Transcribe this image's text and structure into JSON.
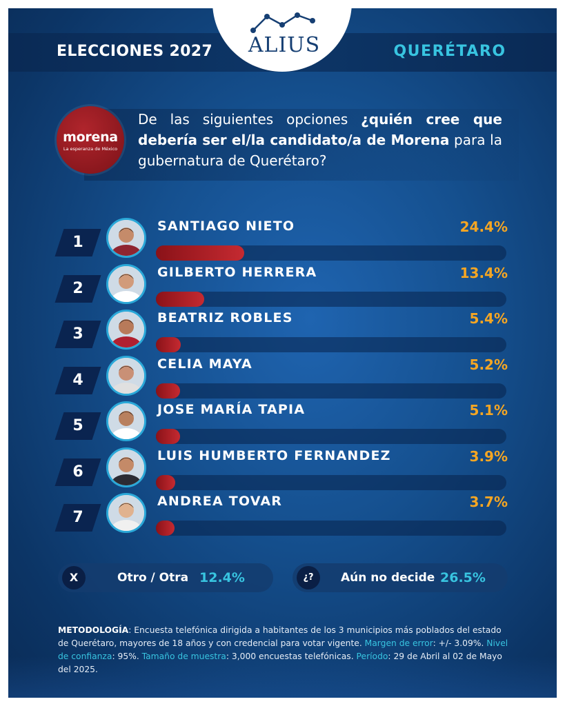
{
  "header": {
    "left": "ELECCIONES 2027",
    "right": "QUERÉTARO",
    "brand": "ALIUS"
  },
  "party": {
    "name": "morena",
    "tagline": "La esperanza de México"
  },
  "question": {
    "part1": "De las siguientes opciones ",
    "bold1": "¿quién cree que debería ser el/la candidato/a de ",
    "bold2": "Morena",
    "part2": " para la gubernatura de Querétaro?"
  },
  "chart_data": {
    "type": "bar",
    "categories": [
      "SANTIAGO NIETO",
      "GILBERTO HERRERA",
      "BEATRIZ ROBLES",
      "CELIA MAYA",
      "JOSE MARÍA TAPIA",
      "LUIS HUMBERTO FERNANDEZ",
      "ANDREA TOVAR"
    ],
    "values": [
      24.4,
      13.4,
      5.4,
      5.2,
      5.1,
      3.9,
      3.7
    ],
    "ranks": [
      "1",
      "2",
      "3",
      "4",
      "5",
      "6",
      "7"
    ],
    "labels": [
      "24.4%",
      "13.4%",
      "5.4%",
      "5.2%",
      "5.1%",
      "3.9%",
      "3.7%"
    ],
    "xlim": [
      0,
      100
    ],
    "title": "",
    "xlabel": "",
    "ylabel": "",
    "legend": "none",
    "grid": false,
    "bar_color": "#b3222a",
    "label_color": "#f5a623"
  },
  "summary": {
    "other": {
      "icon": "X",
      "label": "Otro / Otra",
      "value": "12.4%"
    },
    "undecided": {
      "icon": "¿?",
      "label": "Aún no decide",
      "value": "26.5%"
    }
  },
  "methodology": {
    "k1": "METODOLOGÍA",
    "t1": ": Encuesta telefónica dirigida a habitantes de los 3 municipios más poblados del estado de Querétaro, mayores de 18 años y con credencial para votar vigente. ",
    "c1": "Margen de error",
    "t2": ": +/- 3.09%. ",
    "c2": "Nivel de confianza",
    "t3": ": 95%. ",
    "c3": "Tamaño de muestra",
    "t4": ": 3,000 encuestas telefónicas. ",
    "c4": "Período",
    "t5": ": 29 de Abril al 02 de Mayo del 2025."
  },
  "colors": {
    "accent_cyan": "#38c4e0",
    "accent_orange": "#f5a623",
    "party_red": "#b3222a"
  }
}
